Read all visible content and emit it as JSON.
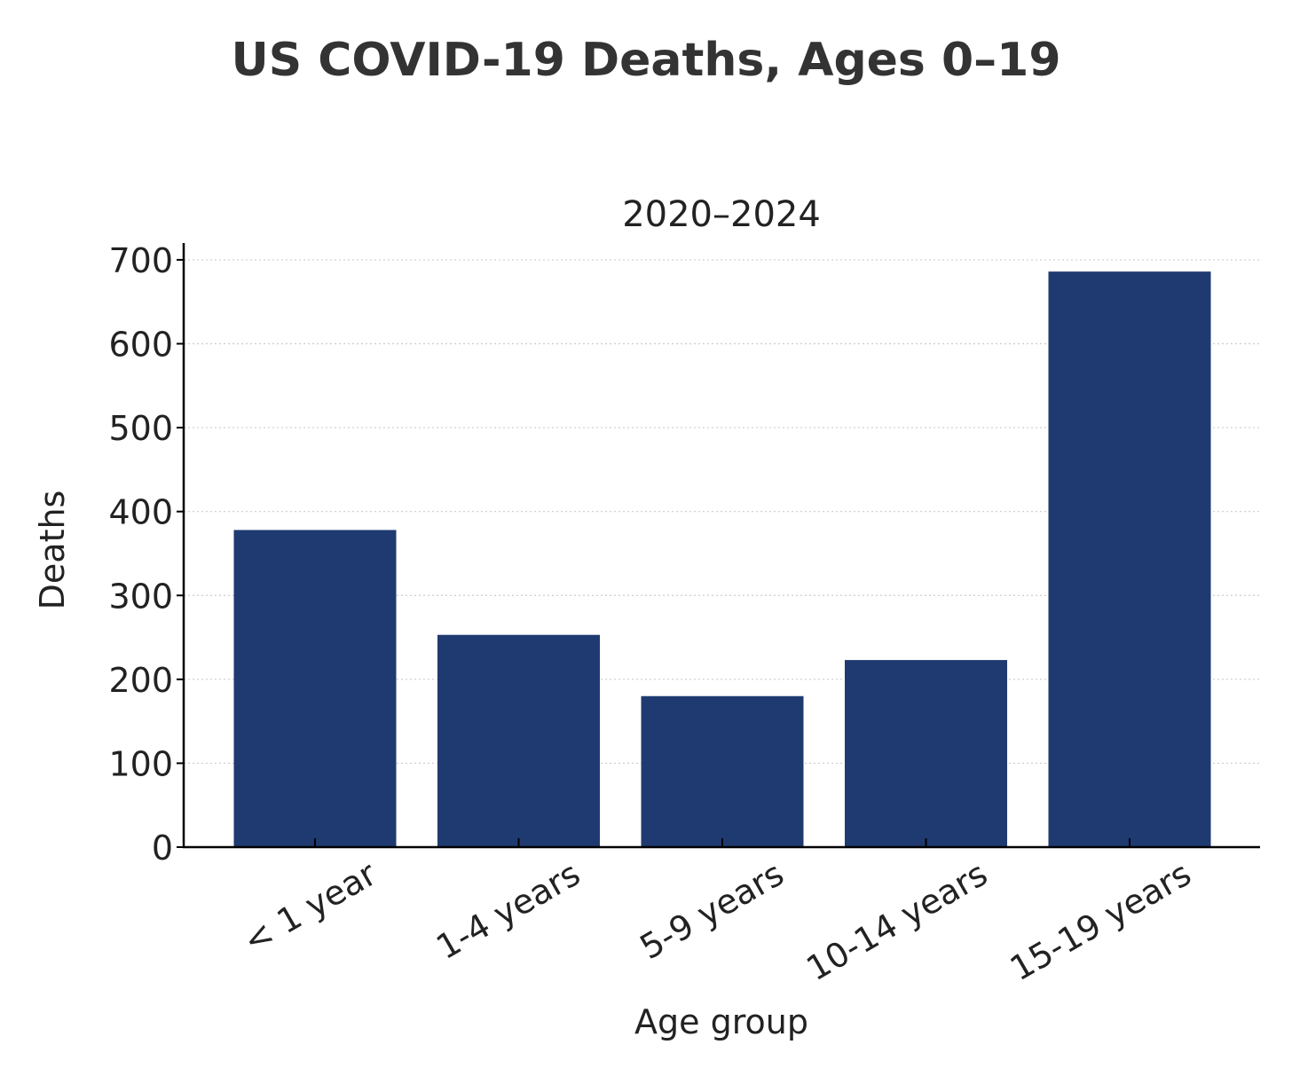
{
  "page_title": "US COVID-19 Deaths, Ages 0–19",
  "chart_data": {
    "type": "bar",
    "title": "2020–2024",
    "xlabel": "Age group",
    "ylabel": "Deaths",
    "categories": [
      "< 1 year",
      "1-4 years",
      "5-9 years",
      "10-14 years",
      "15-19 years"
    ],
    "values": [
      378,
      253,
      180,
      223,
      686
    ],
    "ylim": [
      0,
      720
    ],
    "yticks": [
      0,
      100,
      200,
      300,
      400,
      500,
      600,
      700
    ],
    "grid": "horizontal dotted",
    "colors": {
      "bar": "#1f3a70",
      "axis": "#000000",
      "grid": "#cccccc",
      "text": "#222222"
    }
  }
}
